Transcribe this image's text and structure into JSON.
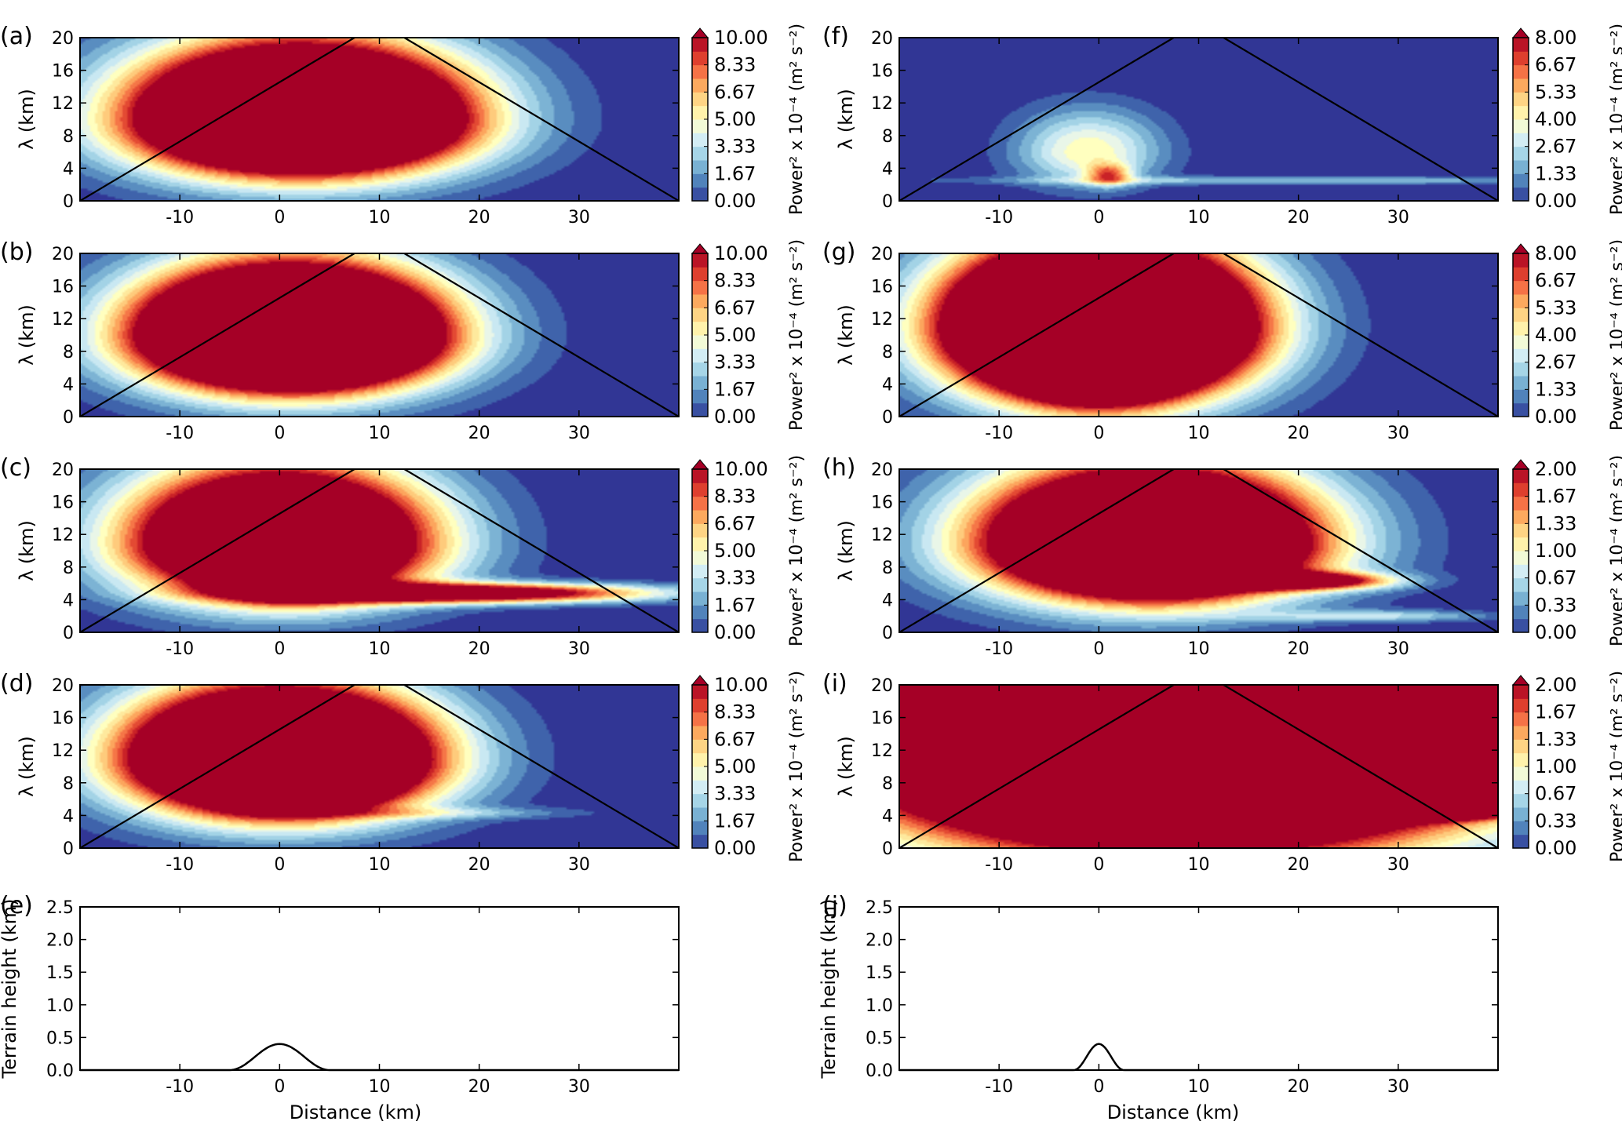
{
  "chart_data": {
    "type": "heatmap",
    "x_label": "Distance (km)",
    "lambda_label": "λ (km)",
    "terrain_label": "Terrain height (km)",
    "colorbar_label": "Power² x 10⁻⁴ (m² s⁻²)",
    "x_ticks": [
      "-10",
      "0",
      "10",
      "20",
      "30"
    ],
    "lambda_ticks": [
      "0",
      "4",
      "8",
      "12",
      "16",
      "20"
    ],
    "terrain_ticks": [
      "0.0",
      "0.5",
      "1.0",
      "1.5",
      "2.0",
      "2.5"
    ],
    "xlim": [
      -20,
      40
    ],
    "lambda_lim": [
      0,
      20
    ],
    "terrain_lim": [
      0,
      2.5
    ],
    "cone_of_influence": [
      {
        "x": [
          -20,
          7.5
        ],
        "y": [
          0,
          20
        ]
      },
      {
        "x": [
          12.5,
          40
        ],
        "y": [
          20,
          0
        ]
      }
    ],
    "colormap": [
      "#313695",
      "#4575b4",
      "#74add1",
      "#abd9e9",
      "#e0f3f8",
      "#ffffbf",
      "#fee090",
      "#fdae61",
      "#f46d43",
      "#d73027",
      "#a50026"
    ],
    "panels": [
      {
        "id": "a",
        "label": "(a)",
        "vmax": 10,
        "cb_ticks": [
          "0.00",
          "1.67",
          "3.33",
          "5.00",
          "6.67",
          "8.33",
          "10.00"
        ],
        "blobs": [
          {
            "x": 2,
            "y": 10,
            "amp": 32,
            "sx": 11,
            "sy": 4.4,
            "up": 1.4
          },
          {
            "x": 3,
            "y": 9.5,
            "amp": 14,
            "sx": 5.5,
            "sy": 2.4,
            "up": 1
          }
        ]
      },
      {
        "id": "b",
        "label": "(b)",
        "vmax": 10,
        "cb_ticks": [
          "0.00",
          "1.67",
          "3.33",
          "5.00",
          "6.67",
          "8.33",
          "10.00"
        ],
        "blobs": [
          {
            "x": 1,
            "y": 10,
            "amp": 34,
            "sx": 10,
            "sy": 4.4,
            "up": 1.3
          },
          {
            "x": 2,
            "y": 9.5,
            "amp": 14,
            "sx": 5.5,
            "sy": 2.6,
            "up": 1
          }
        ]
      },
      {
        "id": "c",
        "label": "(c)",
        "vmax": 10,
        "cb_ticks": [
          "0.00",
          "1.67",
          "3.33",
          "5.00",
          "6.67",
          "8.33",
          "10.00"
        ],
        "blobs": [
          {
            "x": 0,
            "y": 11,
            "amp": 26,
            "sx": 10,
            "sy": 4.5,
            "up": 1.4
          },
          {
            "x": 1,
            "y": 8,
            "amp": 14,
            "sx": 4,
            "sy": 2.2,
            "up": 1
          },
          {
            "x": 18,
            "y": 4.8,
            "amp": 15,
            "sx": 13,
            "sy": 0.8,
            "up": 1
          }
        ]
      },
      {
        "id": "d",
        "label": "(d)",
        "vmax": 10,
        "cb_ticks": [
          "0.00",
          "1.67",
          "3.33",
          "5.00",
          "6.67",
          "8.33",
          "10.00"
        ],
        "blobs": [
          {
            "x": 0,
            "y": 11,
            "amp": 32,
            "sx": 10,
            "sy": 4.5,
            "up": 1.3
          },
          {
            "x": 1,
            "y": 9.5,
            "amp": 14,
            "sx": 5,
            "sy": 2.6,
            "up": 1
          },
          {
            "x": 15,
            "y": 4.3,
            "amp": 2.5,
            "sx": 10,
            "sy": 0.5,
            "up": 1
          }
        ]
      },
      {
        "id": "f",
        "label": "(f)",
        "vmax": 8,
        "cb_ticks": [
          "0.00",
          "1.33",
          "2.67",
          "4.00",
          "5.33",
          "6.67",
          "8.00"
        ],
        "blobs": [
          {
            "x": -1,
            "y": 6,
            "amp": 4.5,
            "sx": 5,
            "sy": 2.8,
            "up": 1.3
          },
          {
            "x": 1,
            "y": 3.2,
            "amp": 5,
            "sx": 1.5,
            "sy": 0.9,
            "up": 1
          },
          {
            "x": 20,
            "y": 2.5,
            "amp": 2.4,
            "sx": 22,
            "sy": 0.35,
            "up": 1
          }
        ]
      },
      {
        "id": "g",
        "label": "(g)",
        "vmax": 8,
        "cb_ticks": [
          "0.00",
          "1.33",
          "2.67",
          "4.00",
          "5.33",
          "6.67",
          "8.00"
        ],
        "blobs": [
          {
            "x": 0,
            "y": 11,
            "amp": 34,
            "sx": 9.5,
            "sy": 5.5,
            "up": 1.2
          },
          {
            "x": 0,
            "y": 7,
            "amp": 18,
            "sx": 4.2,
            "sy": 2.6,
            "up": 1
          }
        ]
      },
      {
        "id": "h",
        "label": "(h)",
        "vmax": 2,
        "cb_ticks": [
          "0.00",
          "0.33",
          "0.67",
          "1.00",
          "1.33",
          "1.67",
          "2.00"
        ],
        "blobs": [
          {
            "x": 5,
            "y": 11,
            "amp": 6,
            "sx": 11,
            "sy": 4.5,
            "up": 1.4
          },
          {
            "x": 6,
            "y": 9.5,
            "amp": 3,
            "sx": 5.5,
            "sy": 2.6,
            "up": 1
          },
          {
            "x": 20,
            "y": 6.3,
            "amp": 2.6,
            "sx": 6,
            "sy": 0.7,
            "up": 1
          },
          {
            "x": 28,
            "y": 2,
            "amp": 0.7,
            "sx": 8,
            "sy": 0.5,
            "up": 1
          }
        ]
      },
      {
        "id": "i",
        "label": "(i)",
        "vmax": 2,
        "cb_ticks": [
          "0.00",
          "0.33",
          "0.67",
          "1.00",
          "1.33",
          "1.67",
          "2.00"
        ],
        "blobs": [
          {
            "x": 8,
            "y": 13,
            "amp": 9,
            "sx": 20,
            "sy": 8,
            "up": 1.5
          },
          {
            "x": 25,
            "y": 7,
            "amp": 6,
            "sx": 9,
            "sy": 1.5,
            "up": 1
          },
          {
            "x": 35,
            "y": 4.5,
            "amp": 2.5,
            "sx": 4,
            "sy": 0.6,
            "up": 1
          }
        ]
      }
    ],
    "terrain": [
      {
        "id": "e",
        "label": "(e)",
        "height": 0.4,
        "halfwidth": 5
      },
      {
        "id": "j",
        "label": "(j)",
        "height": 0.4,
        "halfwidth": 2.5
      }
    ]
  }
}
